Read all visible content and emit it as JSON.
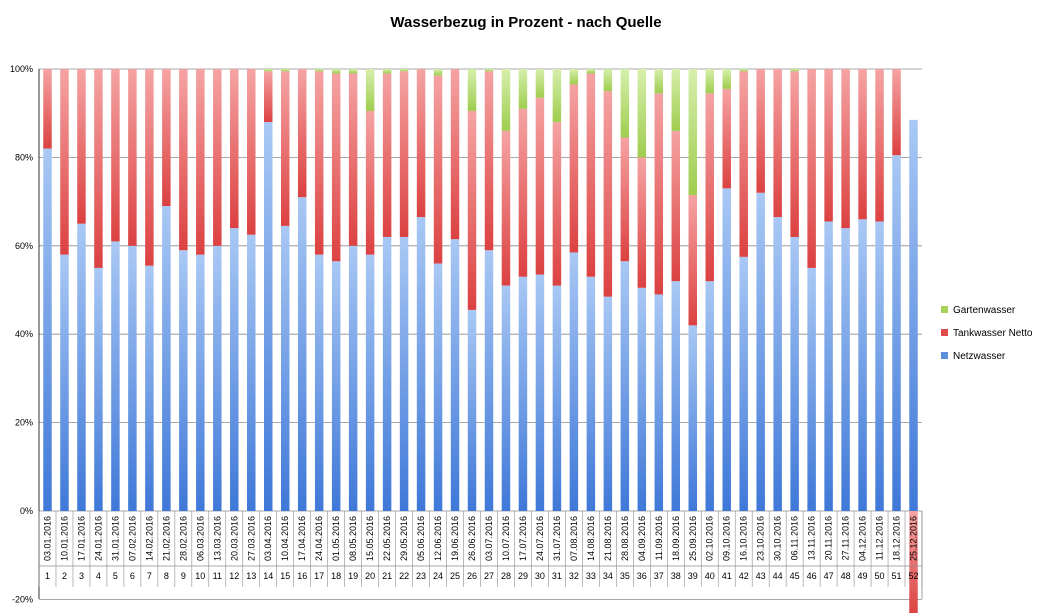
{
  "chart_data": {
    "type": "bar",
    "stacked": true,
    "title": "Wasserbezug in Prozent - nach Quelle",
    "ylim": [
      -20,
      100
    ],
    "yticks": [
      "-20%",
      "0%",
      "20%",
      "40%",
      "60%",
      "80%",
      "100%"
    ],
    "yticks_values": [
      -20,
      0,
      20,
      40,
      60,
      80,
      100
    ],
    "grid": true,
    "legend_position": "right",
    "categories": [
      "1",
      "2",
      "3",
      "4",
      "5",
      "6",
      "7",
      "8",
      "9",
      "10",
      "11",
      "12",
      "13",
      "14",
      "15",
      "16",
      "17",
      "18",
      "19",
      "20",
      "21",
      "22",
      "23",
      "24",
      "25",
      "26",
      "27",
      "28",
      "29",
      "30",
      "31",
      "32",
      "33",
      "34",
      "35",
      "36",
      "37",
      "38",
      "39",
      "40",
      "41",
      "42",
      "43",
      "44",
      "45",
      "46",
      "47",
      "48",
      "49",
      "50",
      "51",
      "52"
    ],
    "dates": [
      "03.01.2016",
      "10.01.2016",
      "17.01.2016",
      "24.01.2016",
      "31.01.2016",
      "07.02.2016",
      "14.02.2016",
      "21.02.2016",
      "28.02.2016",
      "06.03.2016",
      "13.03.2016",
      "20.03.2016",
      "27.03.2016",
      "03.04.2016",
      "10.04.2016",
      "17.04.2016",
      "24.04.2016",
      "01.05.2016",
      "08.05.2016",
      "15.05.2016",
      "22.05.2016",
      "29.05.2016",
      "05.06.2016",
      "12.06.2016",
      "19.06.2016",
      "26.06.2016",
      "03.07.2016",
      "10.07.2016",
      "17.07.2016",
      "24.07.2016",
      "31.07.2016",
      "07.08.2016",
      "14.08.2016",
      "21.08.2016",
      "28.08.2016",
      "04.09.2016",
      "11.09.2016",
      "18.09.2016",
      "25.09.2016",
      "02.10.2016",
      "09.10.2016",
      "16.10.2016",
      "23.10.2016",
      "30.10.2016",
      "06.11.2016",
      "13.11.2016",
      "20.11.2016",
      "27.11.2016",
      "04.12.2016",
      "11.12.2016",
      "18.12.2016",
      "25.12.2016"
    ],
    "series": [
      {
        "name": "Netzwasser",
        "color": "#5b8fde",
        "values": [
          82,
          58,
          65,
          55,
          61,
          60,
          55.5,
          69,
          59,
          58,
          60,
          64,
          62.5,
          88,
          64.5,
          71,
          58,
          56.5,
          60,
          58,
          62,
          62,
          66.5,
          56,
          61.5,
          45.5,
          59,
          51,
          53,
          53.5,
          51,
          58.5,
          53,
          48.5,
          56.5,
          50.5,
          49,
          52,
          42,
          52,
          73,
          57.5,
          72,
          66.5,
          62,
          55,
          65.5,
          64,
          66,
          65.5,
          80.5,
          88.5
        ]
      },
      {
        "name": "Tankwasser Netto",
        "color": "#e04c4c",
        "values": [
          18,
          42,
          35,
          45,
          39,
          40,
          44.5,
          31,
          41,
          42,
          40,
          36,
          37.5,
          11.5,
          35,
          29,
          41.5,
          42.5,
          39,
          32.5,
          37,
          37.5,
          33.5,
          42.5,
          38.5,
          45,
          40.5,
          35,
          38,
          40,
          37,
          38,
          46,
          46.5,
          28,
          29.5,
          45.5,
          34,
          29.5,
          42.5,
          22.5,
          42,
          28,
          33.5,
          37.5,
          45,
          34.5,
          36,
          34,
          34.5,
          19.5,
          -23.5
        ]
      },
      {
        "name": "Gartenwasser",
        "color": "#a8d35a",
        "values": [
          0,
          0,
          0,
          0,
          0,
          0,
          0,
          0,
          0,
          0,
          0,
          0,
          0,
          0.5,
          0.5,
          0,
          0.5,
          1,
          1,
          9.5,
          1,
          0.5,
          0,
          1.5,
          0,
          9.5,
          0.5,
          14,
          9,
          6.5,
          12,
          3.5,
          1,
          5,
          15.5,
          20,
          5.5,
          14,
          28.5,
          5.5,
          4.5,
          0.5,
          0,
          0,
          0.5,
          0,
          0,
          0,
          0,
          0,
          0,
          0
        ]
      }
    ]
  }
}
